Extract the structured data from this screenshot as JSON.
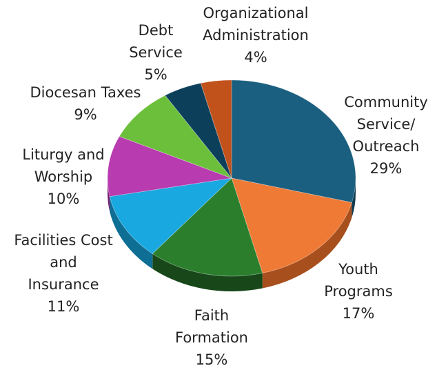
{
  "chart_data": {
    "type": "pie",
    "title": "",
    "legend": "none",
    "slices": [
      {
        "label_lines": [
          "Community",
          "Service/",
          "Outreach"
        ],
        "value": 29,
        "value_label": "29%",
        "color": "#1a5f80",
        "side_color": "#0f3b52"
      },
      {
        "label_lines": [
          "Youth",
          "Programs"
        ],
        "value": 17,
        "value_label": "17%",
        "color": "#ef7a36",
        "side_color": "#a84f1e"
      },
      {
        "label_lines": [
          "Faith",
          "Formation"
        ],
        "value": 15,
        "value_label": "15%",
        "color": "#2a7e2c",
        "side_color": "#18481a"
      },
      {
        "label_lines": [
          "Facilities Cost",
          "and",
          "Insurance"
        ],
        "value": 11,
        "value_label": "11%",
        "color": "#19a8e0",
        "side_color": "#0e6e94"
      },
      {
        "label_lines": [
          "Liturgy and",
          "Worship"
        ],
        "value": 10,
        "value_label": "10%",
        "color": "#b83bb0",
        "side_color": "#7a2074"
      },
      {
        "label_lines": [
          "Diocesan Taxes"
        ],
        "value": 9,
        "value_label": "9%",
        "color": "#6cbf3a",
        "side_color": "#447d22"
      },
      {
        "label_lines": [
          "Debt",
          "Service"
        ],
        "value": 5,
        "value_label": "5%",
        "color": "#0c3f5a",
        "side_color": "#062433"
      },
      {
        "label_lines": [
          "Organizational",
          "Administration"
        ],
        "value": 4,
        "value_label": "4%",
        "color": "#c1521c",
        "side_color": "#7e3310"
      }
    ]
  }
}
